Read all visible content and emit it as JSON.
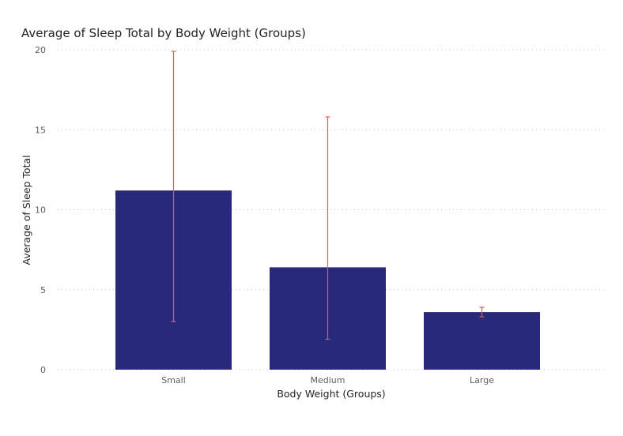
{
  "chart_data": {
    "type": "bar",
    "title": "Average of Sleep Total by Body Weight (Groups)",
    "xlabel": "Body Weight (Groups)",
    "ylabel": "Average of Sleep Total",
    "categories": [
      "Small",
      "Medium",
      "Large"
    ],
    "values": [
      11.2,
      6.4,
      3.6
    ],
    "error_low": [
      3.0,
      1.9,
      3.3
    ],
    "error_high": [
      19.9,
      15.8,
      3.9
    ],
    "ylim": [
      0,
      20
    ],
    "yticks": [
      0,
      5,
      10,
      15,
      20
    ],
    "grid": true,
    "bar_color": "#28297A",
    "error_color": "#E05A5A"
  }
}
